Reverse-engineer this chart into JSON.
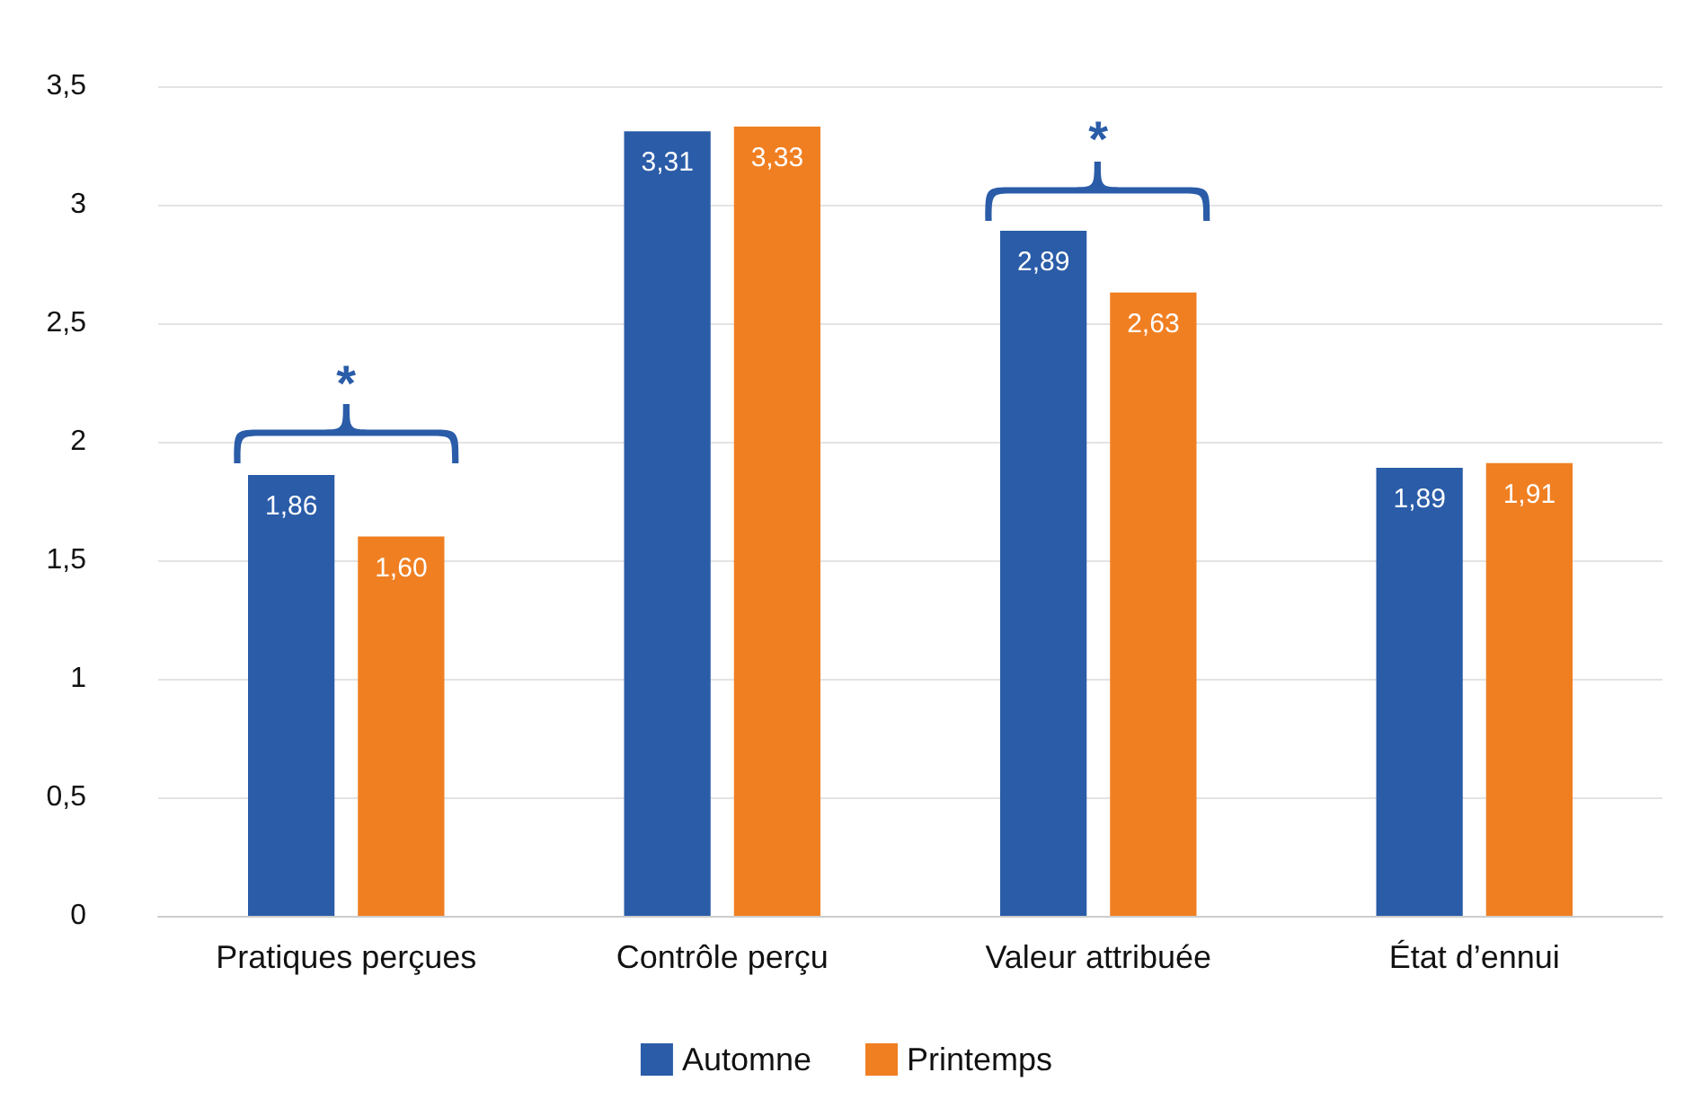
{
  "chart_data": {
    "type": "bar",
    "categories": [
      "Pratiques perçues",
      "Contrôle perçu",
      "Valeur attribuée",
      "État d’ennui"
    ],
    "series": [
      {
        "name": "Automne",
        "color": "#2a5ca8",
        "values": [
          1.86,
          3.31,
          2.89,
          1.89
        ],
        "value_labels": [
          "1,86",
          "3,31",
          "2,89",
          "1,89"
        ]
      },
      {
        "name": "Printemps",
        "color": "#f07f22",
        "values": [
          1.6,
          3.33,
          2.63,
          1.91
        ],
        "value_labels": [
          "1,60",
          "3,33",
          "2,63",
          "1,91"
        ]
      }
    ],
    "ylim": [
      0,
      3.5
    ],
    "yticks": [
      0,
      {
        "value": 0.5,
        "label": "0,5"
      },
      1,
      {
        "value": 1.5,
        "label": "1,5"
      },
      2,
      {
        "value": 2.5,
        "label": "2,5"
      },
      3,
      {
        "value": 3.5,
        "label": "3,5"
      }
    ],
    "grid": "y",
    "legend": "bottom",
    "annotations": [
      "*",
      "*"
    ]
  }
}
